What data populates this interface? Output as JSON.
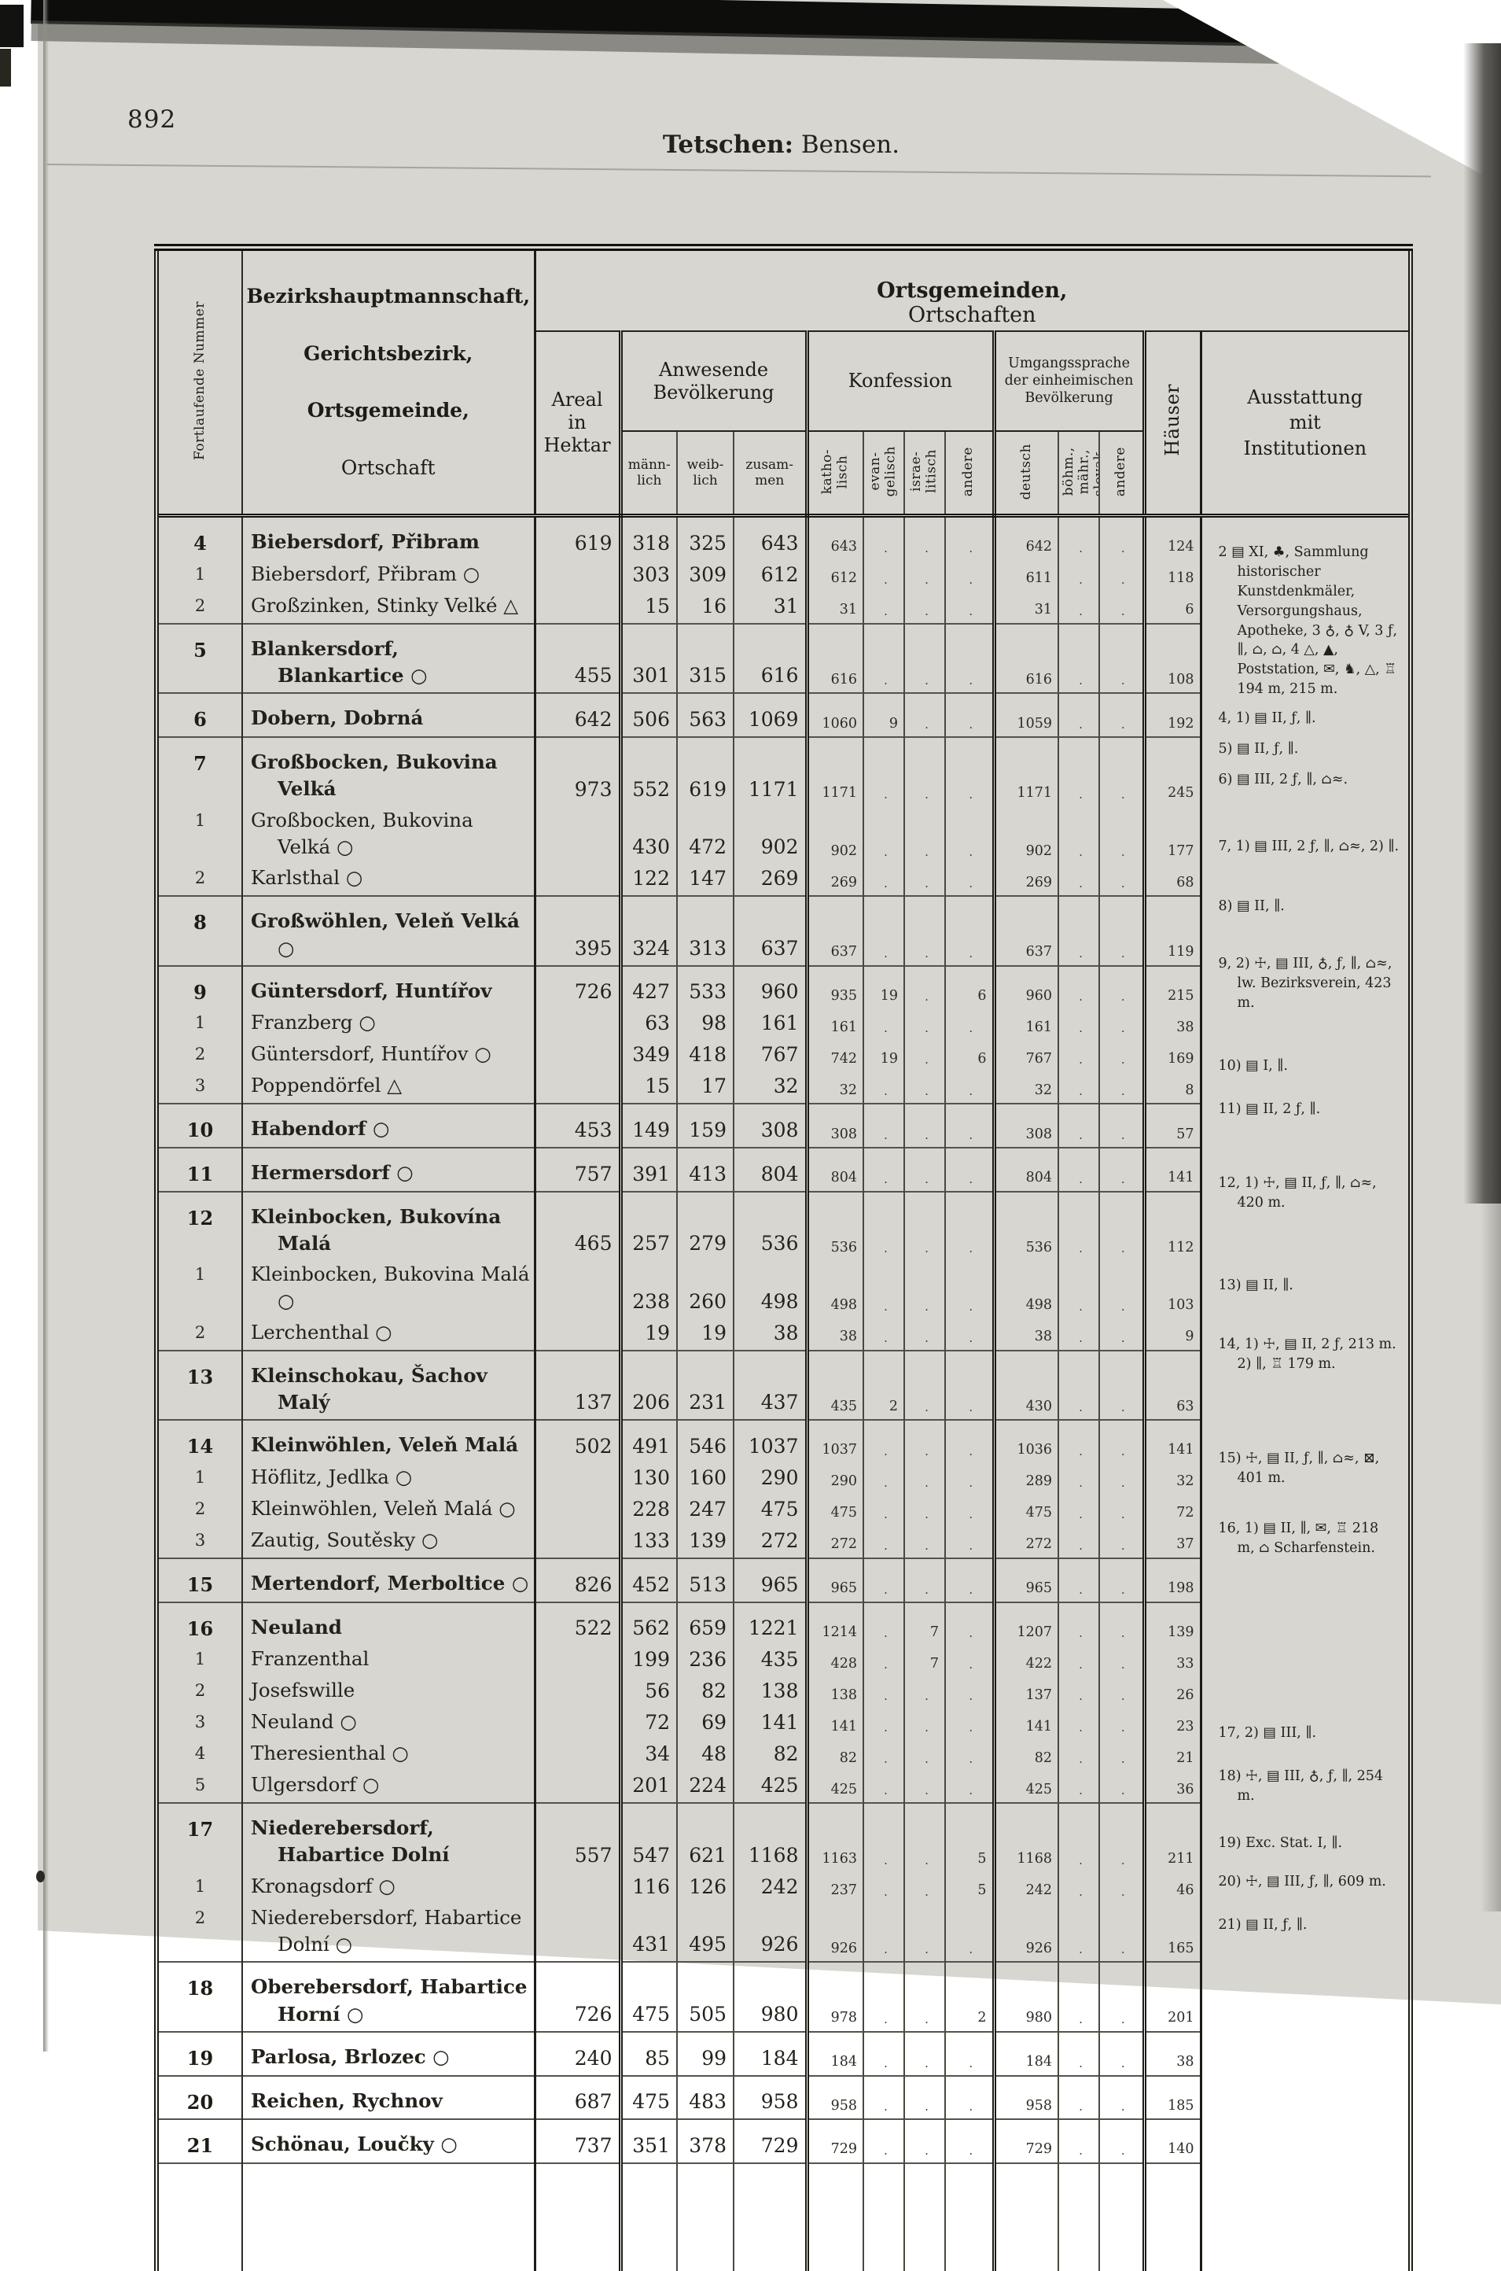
{
  "page": {
    "number": "892",
    "title_district": "Tetschen:",
    "title_court": "Bensen."
  },
  "header": {
    "running_number": "Fortlaufende Nummer",
    "admin1": "Bezirkshauptmannschaft,",
    "admin2": "Gerichtsbezirk,",
    "admin3": "Ortsgemeinde,",
    "admin4": "Ortschaft",
    "band_bold": "Ortsgemeinden,",
    "band_rest": "Ortschaften",
    "areal": "Areal\nin\nHektar",
    "population": "Anwesende\nBevölkerung",
    "confession": "Konfession",
    "language": "Umgangssprache\nder einheimischen\nBevölkerung",
    "maennlich": "männ-\nlich",
    "weiblich": "weib-\nlich",
    "zusammen": "zusam-\nmen",
    "katholisch": "katho-\nlisch",
    "evangelisch": "evan-\ngelisch",
    "israelitisch": "israe-\nlitisch",
    "andere": "andere",
    "deutsch": "deutsch",
    "boehmisch": "böhm.,\nmähr.,\nslovak.",
    "andere2": "andere",
    "haeuser": "Häuser",
    "ausstattung": "Ausstattung\nmit\nInstitutionen"
  },
  "colors": {
    "paper": "#d8d6d0",
    "ink": "#24211b",
    "rule": "#1c1b16"
  },
  "table": {
    "groups": [
      {
        "rows": [
          {
            "nr": "4",
            "b": 1,
            "name": "Biebersdorf, Přibram",
            "areal": "619",
            "m": "318",
            "w": "325",
            "z": "643",
            "k": "643",
            "e": ".",
            "i": ".",
            "a": ".",
            "d": "642",
            "bo": ".",
            "a2": ".",
            "h": "124"
          },
          {
            "nr": "1",
            "name": "Biebersdorf, Přibram ○",
            "areal": "",
            "m": "303",
            "w": "309",
            "z": "612",
            "k": "612",
            "e": ".",
            "i": ".",
            "a": ".",
            "d": "611",
            "bo": ".",
            "a2": ".",
            "h": "118"
          },
          {
            "nr": "2",
            "name": "Großzinken, Stinky Velké △",
            "areal": "",
            "m": "15",
            "w": "16",
            "z": "31",
            "k": "31",
            "e": ".",
            "i": ".",
            "a": ".",
            "d": "31",
            "bo": ".",
            "a2": ".",
            "h": "6"
          }
        ]
      },
      {
        "rows": [
          {
            "nr": "5",
            "b": 1,
            "name": "Blankersdorf, Blankartice ○",
            "areal": "455",
            "m": "301",
            "w": "315",
            "z": "616",
            "k": "616",
            "e": ".",
            "i": ".",
            "a": ".",
            "d": "616",
            "bo": ".",
            "a2": ".",
            "h": "108"
          }
        ]
      },
      {
        "rows": [
          {
            "nr": "6",
            "b": 1,
            "name": "Dobern, Dobrná",
            "areal": "642",
            "m": "506",
            "w": "563",
            "z": "1069",
            "k": "1060",
            "e": "9",
            "i": ".",
            "a": ".",
            "d": "1059",
            "bo": ".",
            "a2": ".",
            "h": "192"
          }
        ]
      },
      {
        "rows": [
          {
            "nr": "7",
            "b": 1,
            "name": "Großbocken, Bukovina Velká",
            "areal": "973",
            "m": "552",
            "w": "619",
            "z": "1171",
            "k": "1171",
            "e": ".",
            "i": ".",
            "a": ".",
            "d": "1171",
            "bo": ".",
            "a2": ".",
            "h": "245"
          },
          {
            "nr": "1",
            "name": "Großbocken, Bukovina Velká ○",
            "areal": "",
            "m": "430",
            "w": "472",
            "z": "902",
            "k": "902",
            "e": ".",
            "i": ".",
            "a": ".",
            "d": "902",
            "bo": ".",
            "a2": ".",
            "h": "177"
          },
          {
            "nr": "2",
            "name": "Karlsthal ○",
            "areal": "",
            "m": "122",
            "w": "147",
            "z": "269",
            "k": "269",
            "e": ".",
            "i": ".",
            "a": ".",
            "d": "269",
            "bo": ".",
            "a2": ".",
            "h": "68"
          }
        ]
      },
      {
        "rows": [
          {
            "nr": "8",
            "b": 1,
            "name": "Großwöhlen, Veleň Velká ○",
            "areal": "395",
            "m": "324",
            "w": "313",
            "z": "637",
            "k": "637",
            "e": ".",
            "i": ".",
            "a": ".",
            "d": "637",
            "bo": ".",
            "a2": ".",
            "h": "119"
          }
        ]
      },
      {
        "rows": [
          {
            "nr": "9",
            "b": 1,
            "name": "Güntersdorf, Huntířov",
            "areal": "726",
            "m": "427",
            "w": "533",
            "z": "960",
            "k": "935",
            "e": "19",
            "i": ".",
            "a": "6",
            "d": "960",
            "bo": ".",
            "a2": ".",
            "h": "215"
          },
          {
            "nr": "1",
            "name": "Franzberg ○",
            "areal": "",
            "m": "63",
            "w": "98",
            "z": "161",
            "k": "161",
            "e": ".",
            "i": ".",
            "a": ".",
            "d": "161",
            "bo": ".",
            "a2": ".",
            "h": "38"
          },
          {
            "nr": "2",
            "name": "Güntersdorf, Huntířov ○",
            "areal": "",
            "m": "349",
            "w": "418",
            "z": "767",
            "k": "742",
            "e": "19",
            "i": ".",
            "a": "6",
            "d": "767",
            "bo": ".",
            "a2": ".",
            "h": "169"
          },
          {
            "nr": "3",
            "name": "Poppendörfel △",
            "areal": "",
            "m": "15",
            "w": "17",
            "z": "32",
            "k": "32",
            "e": ".",
            "i": ".",
            "a": ".",
            "d": "32",
            "bo": ".",
            "a2": ".",
            "h": "8"
          }
        ]
      },
      {
        "rows": [
          {
            "nr": "10",
            "b": 1,
            "name": "Habendorf ○",
            "areal": "453",
            "m": "149",
            "w": "159",
            "z": "308",
            "k": "308",
            "e": ".",
            "i": ".",
            "a": ".",
            "d": "308",
            "bo": ".",
            "a2": ".",
            "h": "57"
          }
        ]
      },
      {
        "rows": [
          {
            "nr": "11",
            "b": 1,
            "name": "Hermersdorf ○",
            "areal": "757",
            "m": "391",
            "w": "413",
            "z": "804",
            "k": "804",
            "e": ".",
            "i": ".",
            "a": ".",
            "d": "804",
            "bo": ".",
            "a2": ".",
            "h": "141"
          }
        ]
      },
      {
        "rows": [
          {
            "nr": "12",
            "b": 1,
            "name": "Kleinbocken, Bukovína Malá",
            "areal": "465",
            "m": "257",
            "w": "279",
            "z": "536",
            "k": "536",
            "e": ".",
            "i": ".",
            "a": ".",
            "d": "536",
            "bo": ".",
            "a2": ".",
            "h": "112"
          },
          {
            "nr": "1",
            "name": "Kleinbocken, Bukovina Malá ○",
            "areal": "",
            "m": "238",
            "w": "260",
            "z": "498",
            "k": "498",
            "e": ".",
            "i": ".",
            "a": ".",
            "d": "498",
            "bo": ".",
            "a2": ".",
            "h": "103"
          },
          {
            "nr": "2",
            "name": "Lerchenthal ○",
            "areal": "",
            "m": "19",
            "w": "19",
            "z": "38",
            "k": "38",
            "e": ".",
            "i": ".",
            "a": ".",
            "d": "38",
            "bo": ".",
            "a2": ".",
            "h": "9"
          }
        ]
      },
      {
        "rows": [
          {
            "nr": "13",
            "b": 1,
            "name": "Kleinschokau, Šachov Malý",
            "areal": "137",
            "m": "206",
            "w": "231",
            "z": "437",
            "k": "435",
            "e": "2",
            "i": ".",
            "a": ".",
            "d": "430",
            "bo": ".",
            "a2": ".",
            "h": "63"
          }
        ]
      },
      {
        "rows": [
          {
            "nr": "14",
            "b": 1,
            "name": "Kleinwöhlen, Veleň Malá",
            "areal": "502",
            "m": "491",
            "w": "546",
            "z": "1037",
            "k": "1037",
            "e": ".",
            "i": ".",
            "a": ".",
            "d": "1036",
            "bo": ".",
            "a2": ".",
            "h": "141"
          },
          {
            "nr": "1",
            "name": "Höflitz, Jedlka ○",
            "areal": "",
            "m": "130",
            "w": "160",
            "z": "290",
            "k": "290",
            "e": ".",
            "i": ".",
            "a": ".",
            "d": "289",
            "bo": ".",
            "a2": ".",
            "h": "32"
          },
          {
            "nr": "2",
            "name": "Kleinwöhlen, Veleň Malá ○",
            "areal": "",
            "m": "228",
            "w": "247",
            "z": "475",
            "k": "475",
            "e": ".",
            "i": ".",
            "a": ".",
            "d": "475",
            "bo": ".",
            "a2": ".",
            "h": "72"
          },
          {
            "nr": "3",
            "name": "Zautig, Soutěsky ○",
            "areal": "",
            "m": "133",
            "w": "139",
            "z": "272",
            "k": "272",
            "e": ".",
            "i": ".",
            "a": ".",
            "d": "272",
            "bo": ".",
            "a2": ".",
            "h": "37"
          }
        ]
      },
      {
        "rows": [
          {
            "nr": "15",
            "b": 1,
            "name": "Mertendorf, Merboltice ○",
            "areal": "826",
            "m": "452",
            "w": "513",
            "z": "965",
            "k": "965",
            "e": ".",
            "i": ".",
            "a": ".",
            "d": "965",
            "bo": ".",
            "a2": ".",
            "h": "198"
          }
        ]
      },
      {
        "rows": [
          {
            "nr": "16",
            "b": 1,
            "name": "Neuland",
            "areal": "522",
            "m": "562",
            "w": "659",
            "z": "1221",
            "k": "1214",
            "e": ".",
            "i": "7",
            "a": ".",
            "d": "1207",
            "bo": ".",
            "a2": ".",
            "h": "139"
          },
          {
            "nr": "1",
            "name": "Franzenthal",
            "areal": "",
            "m": "199",
            "w": "236",
            "z": "435",
            "k": "428",
            "e": ".",
            "i": "7",
            "a": ".",
            "d": "422",
            "bo": ".",
            "a2": ".",
            "h": "33"
          },
          {
            "nr": "2",
            "name": "Josefswille",
            "areal": "",
            "m": "56",
            "w": "82",
            "z": "138",
            "k": "138",
            "e": ".",
            "i": ".",
            "a": ".",
            "d": "137",
            "bo": ".",
            "a2": ".",
            "h": "26"
          },
          {
            "nr": "3",
            "name": "Neuland ○",
            "areal": "",
            "m": "72",
            "w": "69",
            "z": "141",
            "k": "141",
            "e": ".",
            "i": ".",
            "a": ".",
            "d": "141",
            "bo": ".",
            "a2": ".",
            "h": "23"
          },
          {
            "nr": "4",
            "name": "Theresienthal ○",
            "areal": "",
            "m": "34",
            "w": "48",
            "z": "82",
            "k": "82",
            "e": ".",
            "i": ".",
            "a": ".",
            "d": "82",
            "bo": ".",
            "a2": ".",
            "h": "21"
          },
          {
            "nr": "5",
            "name": "Ulgersdorf ○",
            "areal": "",
            "m": "201",
            "w": "224",
            "z": "425",
            "k": "425",
            "e": ".",
            "i": ".",
            "a": ".",
            "d": "425",
            "bo": ".",
            "a2": ".",
            "h": "36"
          }
        ]
      },
      {
        "rows": [
          {
            "nr": "17",
            "b": 1,
            "name": "Niederebersdorf, Habartice Dolní",
            "areal": "557",
            "m": "547",
            "w": "621",
            "z": "1168",
            "k": "1163",
            "e": ".",
            "i": ".",
            "a": "5",
            "d": "1168",
            "bo": ".",
            "a2": ".",
            "h": "211"
          },
          {
            "nr": "1",
            "name": "Kronagsdorf ○",
            "areal": "",
            "m": "116",
            "w": "126",
            "z": "242",
            "k": "237",
            "e": ".",
            "i": ".",
            "a": "5",
            "d": "242",
            "bo": ".",
            "a2": ".",
            "h": "46"
          },
          {
            "nr": "2",
            "name": "Niederebersdorf, Habartice Dolní ○",
            "areal": "",
            "m": "431",
            "w": "495",
            "z": "926",
            "k": "926",
            "e": ".",
            "i": ".",
            "a": ".",
            "d": "926",
            "bo": ".",
            "a2": ".",
            "h": "165"
          }
        ]
      },
      {
        "rows": [
          {
            "nr": "18",
            "b": 1,
            "name": "Oberebersdorf, Habartice Horní ○",
            "areal": "726",
            "m": "475",
            "w": "505",
            "z": "980",
            "k": "978",
            "e": ".",
            "i": ".",
            "a": "2",
            "d": "980",
            "bo": ".",
            "a2": ".",
            "h": "201"
          }
        ]
      },
      {
        "rows": [
          {
            "nr": "19",
            "b": 1,
            "name": "Parlosa, Brlozec ○",
            "areal": "240",
            "m": "85",
            "w": "99",
            "z": "184",
            "k": "184",
            "e": ".",
            "i": ".",
            "a": ".",
            "d": "184",
            "bo": ".",
            "a2": ".",
            "h": "38"
          }
        ]
      },
      {
        "rows": [
          {
            "nr": "20",
            "b": 1,
            "name": "Reichen, Rychnov",
            "areal": "687",
            "m": "475",
            "w": "483",
            "z": "958",
            "k": "958",
            "e": ".",
            "i": ".",
            "a": ".",
            "d": "958",
            "bo": ".",
            "a2": ".",
            "h": "185"
          }
        ]
      },
      {
        "rows": [
          {
            "nr": "21",
            "b": 1,
            "name": "Schönau, Loučky ○",
            "areal": "737",
            "m": "351",
            "w": "378",
            "z": "729",
            "k": "729",
            "e": ".",
            "i": ".",
            "a": ".",
            "d": "729",
            "bo": ".",
            "a2": ".",
            "h": "140"
          }
        ]
      }
    ]
  },
  "notes": [
    {
      "gap": 14,
      "text": "2 ▤ XI, ♣, Sammlung historischer Kunstdenkmäler, Versorgungshaus, Apotheke, 3 ♁, ♁ V, 3 ƒ, ∥, ⌂, ⌂, 4 △, ▲, Poststation, ✉, ♞, △, ♖ 194 m, 215 m."
    },
    {
      "gap": 12,
      "text": "4, 1) ▤ II, ƒ, ∥."
    },
    {
      "gap": 14,
      "text": "5) ▤ II, ƒ, ∥."
    },
    {
      "gap": 14,
      "text": "6) ▤ III, 2 ƒ, ∥, ⌂≈."
    },
    {
      "gap": 60,
      "text": "7, 1) ▤ III, 2 ƒ, ∥, ⌂≈, 2) ∥."
    },
    {
      "gap": 52,
      "text": "8) ▤ II, ∥."
    },
    {
      "gap": 48,
      "text": "9, 2) ☩, ▤ III, ♁, ƒ, ∥, ⌂≈, lw. Bezirksverein, 423 m."
    },
    {
      "gap": 55,
      "text": "10) ▤ I, ∥."
    },
    {
      "gap": 30,
      "text": "11) ▤ II, 2 ƒ, ∥."
    },
    {
      "gap": 70,
      "text": "12, 1) ☩, ▤ II, ƒ, ∥, ⌂≈, 420 m."
    },
    {
      "gap": 80,
      "text": "13) ▤ II, ∥."
    },
    {
      "gap": 50,
      "text": "14, 1) ☩, ▤ II, 2 ƒ, 213 m. 2) ∥, ♖ 179 m."
    },
    {
      "gap": 95,
      "text": "15) ☩, ▤ II, ƒ, ∥, ⌂≈, ⊠, 401 m."
    },
    {
      "gap": 40,
      "text": "16, 1) ▤ II, ∥, ✉, ♖ 218 m, ⌂ Scharfenstein."
    },
    {
      "gap": 210,
      "text": "17, 2) ▤ III, ∥."
    },
    {
      "gap": 30,
      "text": "18) ☩, ▤ III, ♁, ƒ, ∥, 254 m."
    },
    {
      "gap": 35,
      "text": "19) Exc. Stat. I, ∥."
    },
    {
      "gap": 25,
      "text": "20) ☩, ▤ III, ƒ, ∥, 609 m."
    },
    {
      "gap": 30,
      "text": "21) ▤ II, ƒ, ∥."
    }
  ]
}
